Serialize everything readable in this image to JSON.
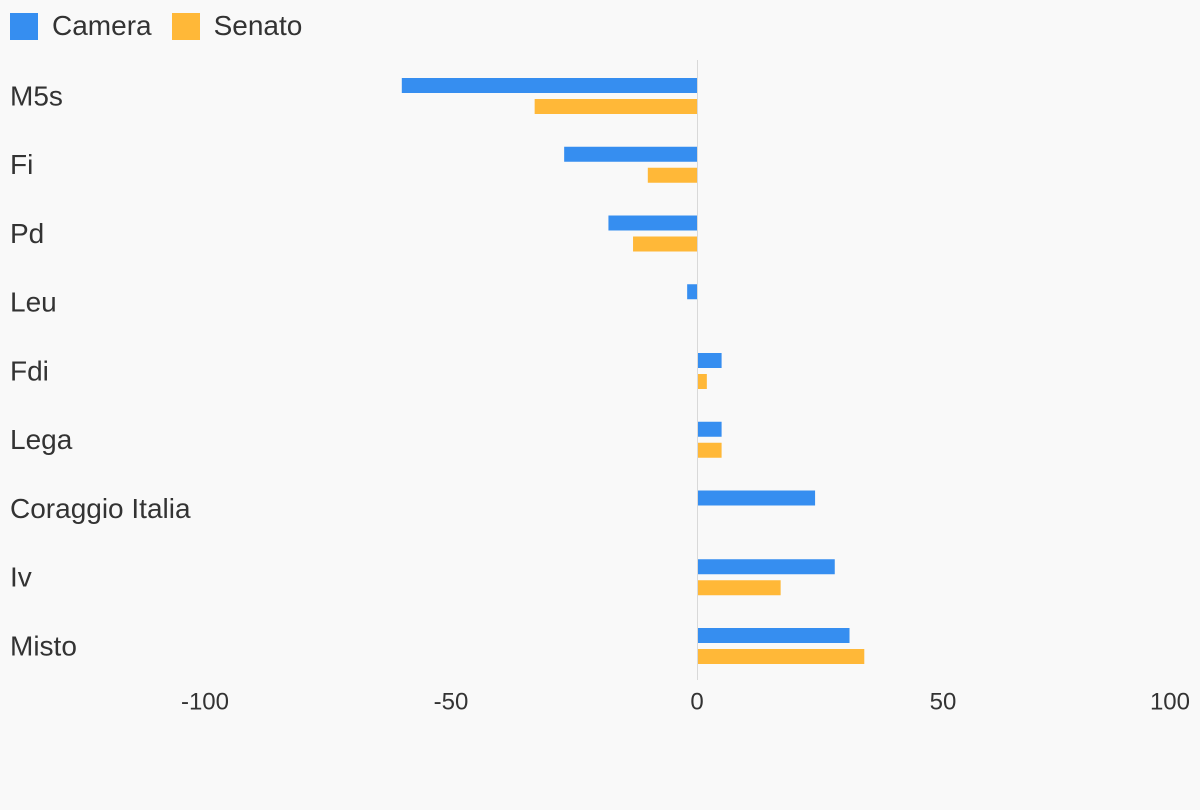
{
  "chart_data": {
    "type": "bar",
    "orientation": "horizontal",
    "categories": [
      "M5s",
      "Fi",
      "Pd",
      "Leu",
      "Fdi",
      "Lega",
      "Coraggio Italia",
      "Iv",
      "Misto"
    ],
    "series": [
      {
        "name": "Camera",
        "color": "#368ef0",
        "values": [
          -60,
          -27,
          -18,
          -2,
          5,
          5,
          24,
          28,
          31
        ]
      },
      {
        "name": "Senato",
        "color": "#ffb838",
        "values": [
          -33,
          -10,
          -13,
          0,
          2,
          5,
          0,
          17,
          34
        ]
      }
    ],
    "xlim": [
      -100,
      100
    ],
    "xticks": [
      -100,
      -50,
      0,
      50,
      100
    ],
    "xtick_labels": [
      "-100",
      "-50",
      "0",
      "50",
      "100"
    ],
    "title": "",
    "xlabel": "",
    "ylabel": "",
    "legend_position": "top-left",
    "grid": false
  }
}
